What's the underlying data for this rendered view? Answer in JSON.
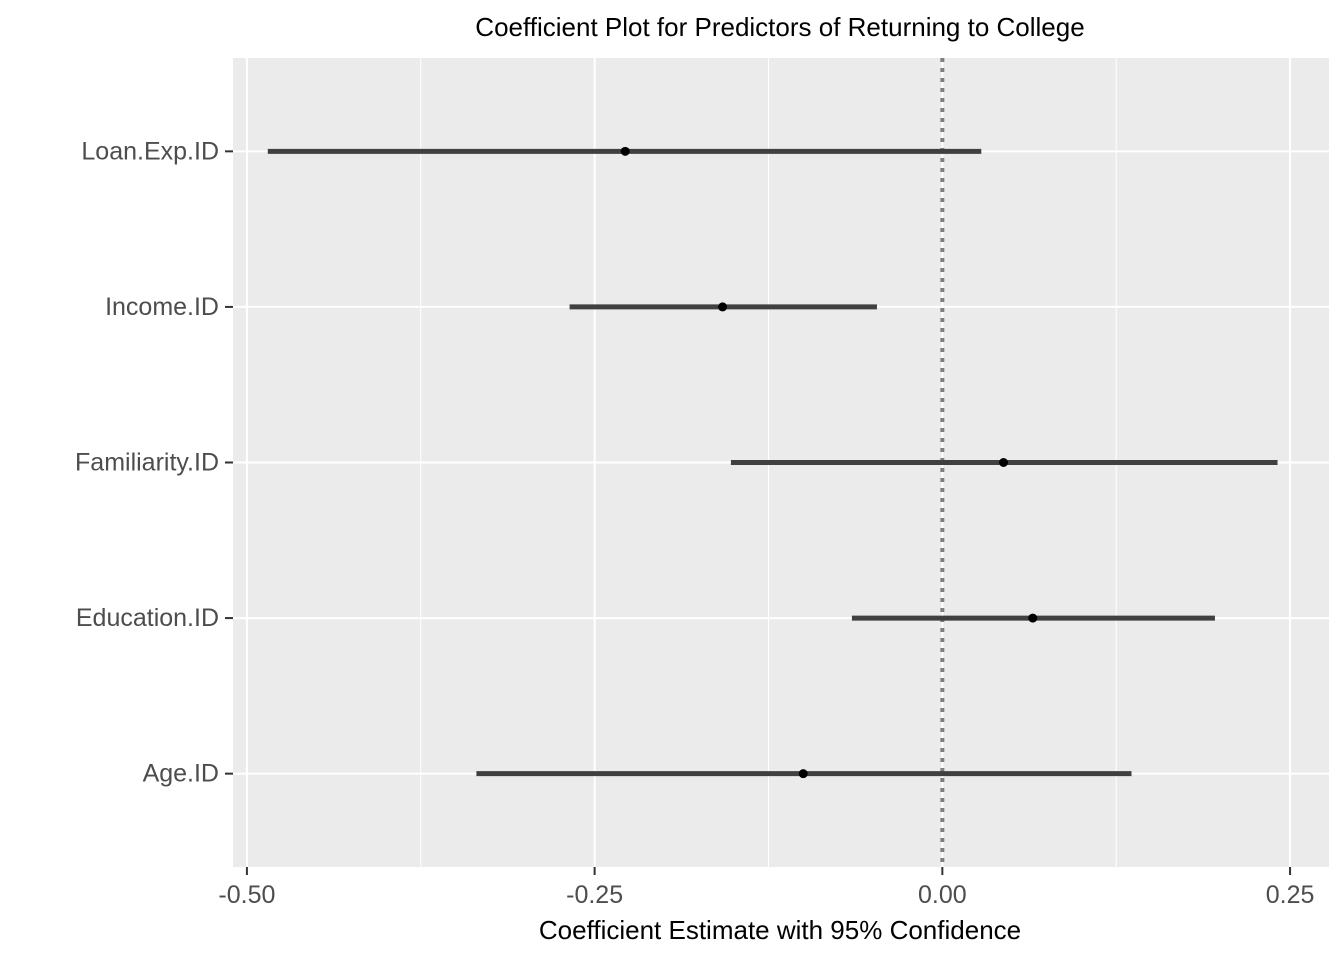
{
  "chart_data": {
    "type": "scatter",
    "subtype": "coefficient-plot",
    "title": "Coefficient Plot for Predictors of Returning to College",
    "xlabel": "Coefficient Estimate with 95% Confidence",
    "ylabel": "",
    "xlim": [
      -0.51,
      0.278
    ],
    "x_ticks": [
      -0.5,
      -0.25,
      0.0,
      0.25
    ],
    "x_tick_labels": [
      "-0.50",
      "-0.25",
      "0.00",
      "0.25"
    ],
    "categories": [
      "Loan.Exp.ID",
      "Income.ID",
      "Familiarity.ID",
      "Education.ID",
      "Age.ID"
    ],
    "estimates": [
      -0.228,
      -0.158,
      0.044,
      0.065,
      -0.1
    ],
    "ci_lower": [
      -0.485,
      -0.268,
      -0.152,
      -0.065,
      -0.335
    ],
    "ci_upper": [
      0.028,
      -0.047,
      0.241,
      0.196,
      0.136
    ],
    "reference_line": 0.0,
    "grid": true,
    "colors": {
      "panel_background": "#ebebeb",
      "grid_line": "#ffffff",
      "interval": "#404040",
      "point": "#000000",
      "reference_line": "#7f7f7f",
      "tick_label": "#4d4d4d",
      "tick_mark": "#333333"
    }
  }
}
